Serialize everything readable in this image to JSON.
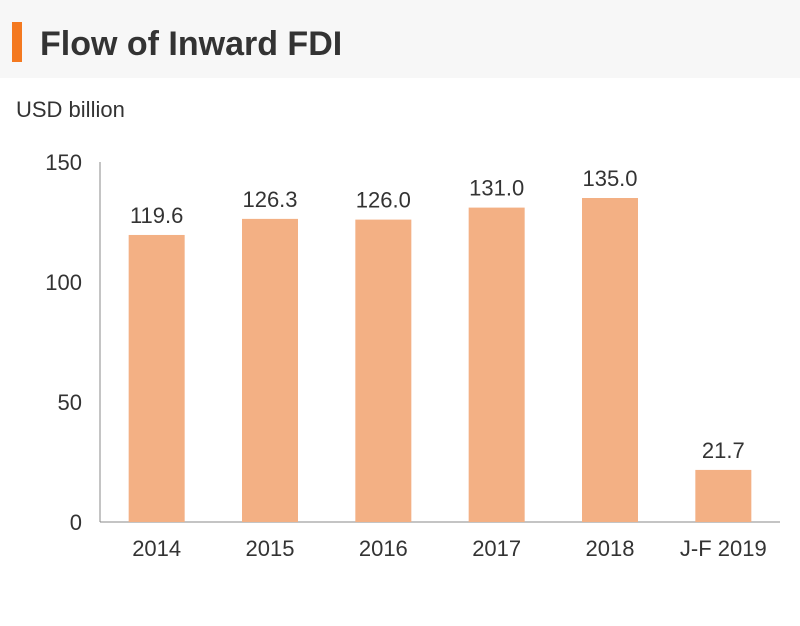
{
  "colors": {
    "bar": "#f3b084",
    "accent": "#f47920",
    "axis": "#888888",
    "text": "#333333"
  },
  "chart_data": {
    "type": "bar",
    "title": "Flow of Inward FDI",
    "ylabel": "USD billion",
    "xlabel": "",
    "categories": [
      "2014",
      "2015",
      "2016",
      "2017",
      "2018",
      "J-F 2019"
    ],
    "values": [
      119.6,
      126.3,
      126.0,
      131.0,
      135.0,
      21.7
    ],
    "value_labels": [
      "119.6",
      "126.3",
      "126.0",
      "131.0",
      "135.0",
      "21.7"
    ],
    "ylim": [
      0,
      150
    ],
    "yticks": [
      "0",
      "50",
      "100",
      "150"
    ],
    "grid": false,
    "legend": "none"
  }
}
